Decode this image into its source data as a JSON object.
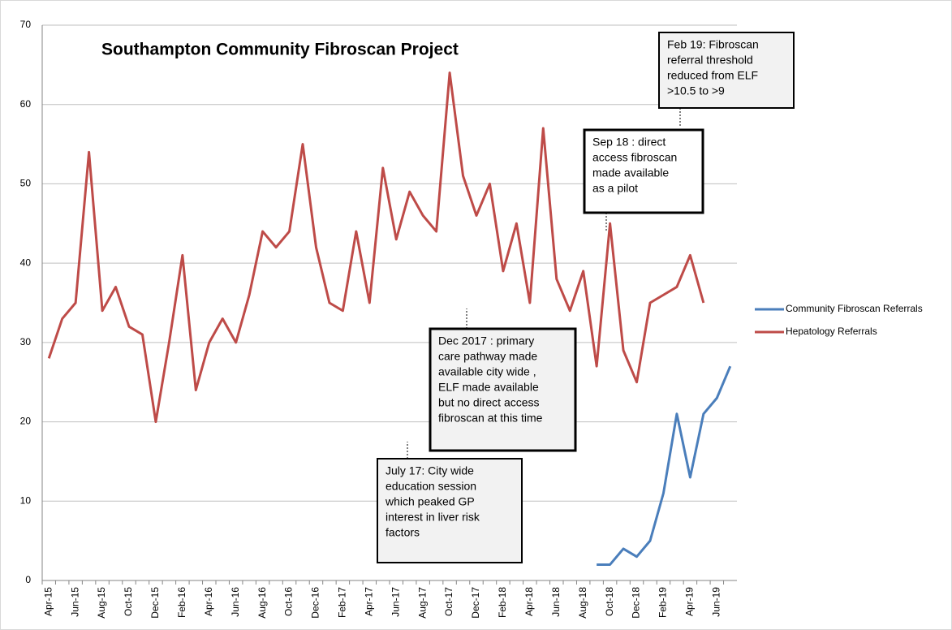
{
  "chart_data": {
    "type": "line",
    "title": "Southampton Community Fibroscan Project",
    "categories": [
      "Apr-15",
      null,
      "Jun-15",
      null,
      "Aug-15",
      null,
      "Oct-15",
      null,
      "Dec-15",
      null,
      "Feb-16",
      null,
      "Apr-16",
      null,
      "Jun-16",
      null,
      "Aug-16",
      null,
      "Oct-16",
      null,
      "Dec-16",
      null,
      "Feb-17",
      null,
      "Apr-17",
      null,
      "Jun-17",
      null,
      "Aug-17",
      null,
      "Oct-17",
      null,
      "Dec-17",
      null,
      "Feb-18",
      null,
      "Apr-18",
      null,
      "Jun-18",
      null,
      "Aug-18",
      null,
      "Oct-18",
      null,
      "Dec-18",
      null,
      "Feb-19",
      null,
      "Apr-19",
      null,
      "Jun-19",
      null
    ],
    "series": [
      {
        "name": "Community Fibroscan Referrals",
        "color": "#4a7ebb",
        "values": [
          null,
          null,
          null,
          null,
          null,
          null,
          null,
          null,
          null,
          null,
          null,
          null,
          null,
          null,
          null,
          null,
          null,
          null,
          null,
          null,
          null,
          null,
          null,
          null,
          null,
          null,
          null,
          null,
          null,
          null,
          null,
          null,
          null,
          null,
          null,
          null,
          null,
          null,
          null,
          null,
          null,
          2,
          2,
          4,
          3,
          5,
          11,
          21,
          13,
          21,
          23,
          27
        ]
      },
      {
        "name": "Hepatology Referrals",
        "color": "#be4b48",
        "values": [
          28,
          33,
          35,
          54,
          34,
          37,
          32,
          31,
          20,
          30,
          41,
          24,
          30,
          33,
          30,
          36,
          44,
          42,
          44,
          55,
          42,
          35,
          34,
          44,
          35,
          52,
          43,
          49,
          46,
          44,
          64,
          51,
          46,
          50,
          39,
          45,
          35,
          57,
          38,
          34,
          39,
          27,
          45,
          29,
          25,
          35,
          36,
          37,
          41,
          35,
          null,
          null
        ]
      }
    ],
    "ylim": [
      0,
      70
    ],
    "yticks": [
      0,
      10,
      20,
      30,
      40,
      50,
      60,
      70
    ],
    "grid": true,
    "legend": "right",
    "annotations": [
      {
        "lines": [
          "Feb 19: Fibroscan",
          "referral threshold",
          "reduced from ELF",
          ">10.5 to >9"
        ]
      },
      {
        "lines": [
          "Sep 18 : direct",
          "access fibroscan",
          "made available",
          "as a pilot"
        ]
      },
      {
        "lines": [
          "Dec 2017 : primary",
          "care pathway made",
          "available city wide ,",
          "ELF made available",
          "but no direct access",
          "fibroscan at this time"
        ]
      },
      {
        "lines": [
          "July 17: City wide",
          "education session",
          "which peaked GP",
          "interest in liver risk",
          "factors"
        ]
      }
    ]
  }
}
